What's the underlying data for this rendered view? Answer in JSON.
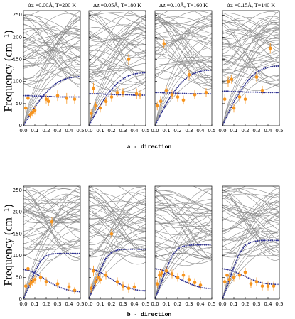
{
  "figure": {
    "y_label": "Frequency (cm⁻¹)",
    "row_labels": [
      "a - direction",
      "b - direction"
    ]
  },
  "chart_data": [
    {
      "type": "scatter",
      "title": "Δz =0.00Å,  T=200 K",
      "xlim": [
        0,
        0.5
      ],
      "ylim": [
        0,
        260
      ],
      "xticks": [
        {
          "value": 0,
          "label": "0.0"
        },
        0.1,
        0.2,
        0.3,
        0.4,
        0.5
      ],
      "yticks": [
        0,
        50,
        100,
        150,
        200,
        250
      ],
      "series": [
        {
          "color": "#2e3192",
          "x": [
            0,
            0.05,
            0.1,
            0.15,
            0.2,
            0.25,
            0.3,
            0.35,
            0.4,
            0.45,
            0.5
          ],
          "values": [
            0,
            22,
            42,
            60,
            75,
            88,
            98,
            104,
            108,
            110,
            111
          ]
        },
        {
          "color": "#2e3192",
          "x": [
            0,
            0.05,
            0.1,
            0.15,
            0.2,
            0.25,
            0.3,
            0.35,
            0.4,
            0.45,
            0.5
          ],
          "values": [
            68,
            68,
            67,
            67,
            66,
            66,
            65,
            65,
            65,
            65,
            65
          ]
        },
        {
          "color": "#f7941d",
          "x": [
            0.02,
            0.04,
            0.06,
            0.08,
            0.1,
            0.2,
            0.22,
            0.3,
            0.38,
            0.45
          ],
          "values": [
            40,
            62,
            25,
            30,
            35,
            60,
            55,
            68,
            62,
            60
          ],
          "errors": [
            10,
            12,
            8,
            8,
            10,
            10,
            10,
            12,
            12,
            10
          ]
        }
      ]
    },
    {
      "type": "scatter",
      "title": "Δz =0.05Å,  T=180 K",
      "xlim": [
        0,
        0.5
      ],
      "ylim": [
        0,
        260
      ],
      "xticks": [
        {
          "value": 0,
          "label": "0.0"
        },
        0.1,
        0.2,
        0.3,
        0.4,
        0.5
      ],
      "yticks": [
        0,
        50,
        100,
        150,
        200,
        250
      ],
      "series": [
        {
          "color": "#2e3192",
          "x": [
            0,
            0.05,
            0.1,
            0.15,
            0.2,
            0.25,
            0.3,
            0.35,
            0.4,
            0.45,
            0.5
          ],
          "values": [
            0,
            24,
            46,
            66,
            82,
            96,
            106,
            113,
            117,
            119,
            120
          ]
        },
        {
          "color": "#2e3192",
          "x": [
            0,
            0.05,
            0.1,
            0.15,
            0.2,
            0.25,
            0.3,
            0.35,
            0.4,
            0.45,
            0.5
          ],
          "values": [
            72,
            72,
            72,
            71,
            71,
            70,
            70,
            70,
            69,
            69,
            69
          ]
        },
        {
          "color": "#f7941d",
          "x": [
            0.02,
            0.04,
            0.06,
            0.1,
            0.15,
            0.2,
            0.25,
            0.3,
            0.35,
            0.42,
            0.45
          ],
          "values": [
            28,
            85,
            45,
            40,
            55,
            65,
            75,
            75,
            150,
            72,
            70
          ],
          "errors": [
            10,
            12,
            10,
            10,
            10,
            10,
            10,
            10,
            12,
            12,
            10
          ]
        }
      ]
    },
    {
      "type": "scatter",
      "title": "Δz =0.10Å,  T=160 K",
      "xlim": [
        0,
        0.5
      ],
      "ylim": [
        0,
        260
      ],
      "xticks": [
        {
          "value": 0,
          "label": "0.0"
        },
        0.1,
        0.2,
        0.3,
        0.4,
        0.5
      ],
      "yticks": [
        0,
        50,
        100,
        150,
        200,
        250
      ],
      "series": [
        {
          "color": "#2e3192",
          "x": [
            0,
            0.05,
            0.1,
            0.15,
            0.2,
            0.25,
            0.3,
            0.35,
            0.4,
            0.45,
            0.5
          ],
          "values": [
            0,
            26,
            50,
            71,
            88,
            102,
            112,
            119,
            123,
            125,
            126
          ]
        },
        {
          "color": "#2e3192",
          "x": [
            0,
            0.05,
            0.1,
            0.15,
            0.2,
            0.25,
            0.3,
            0.35,
            0.4,
            0.45,
            0.5
          ],
          "values": [
            75,
            75,
            74,
            74,
            73,
            73,
            72,
            72,
            72,
            72,
            72
          ]
        },
        {
          "color": "#f7941d",
          "x": [
            0.02,
            0.05,
            0.08,
            0.1,
            0.15,
            0.2,
            0.25,
            0.3,
            0.35,
            0.45
          ],
          "values": [
            45,
            55,
            185,
            80,
            70,
            65,
            58,
            115,
            70,
            75
          ],
          "errors": [
            10,
            12,
            10,
            10,
            10,
            10,
            10,
            12,
            10,
            10
          ]
        }
      ]
    },
    {
      "type": "scatter",
      "title": "Δz =0.15Å,  T=140 K",
      "xlim": [
        0,
        0.5
      ],
      "ylim": [
        0,
        260
      ],
      "xticks": [
        {
          "value": 0,
          "label": "0.0"
        },
        0.1,
        0.2,
        0.3,
        0.4,
        0.5
      ],
      "yticks": [
        0,
        50,
        100,
        150,
        200,
        250
      ],
      "series": [
        {
          "color": "#2e3192",
          "x": [
            0,
            0.05,
            0.1,
            0.15,
            0.2,
            0.25,
            0.3,
            0.35,
            0.4,
            0.45,
            0.5
          ],
          "values": [
            0,
            28,
            54,
            76,
            95,
            110,
            121,
            128,
            132,
            134,
            135
          ]
        },
        {
          "color": "#2e3192",
          "x": [
            0,
            0.05,
            0.1,
            0.15,
            0.2,
            0.25,
            0.3,
            0.35,
            0.4,
            0.45,
            0.5
          ],
          "values": [
            78,
            78,
            77,
            77,
            76,
            76,
            76,
            75,
            75,
            75,
            75
          ]
        },
        {
          "color": "#f7941d",
          "x": [
            0.02,
            0.05,
            0.08,
            0.1,
            0.15,
            0.2,
            0.3,
            0.35,
            0.42
          ],
          "values": [
            60,
            100,
            105,
            40,
            65,
            60,
            110,
            80,
            175
          ],
          "errors": [
            12,
            12,
            10,
            10,
            10,
            10,
            12,
            10,
            12
          ]
        }
      ]
    },
    {
      "type": "scatter",
      "xlim": [
        0,
        0.5
      ],
      "ylim": [
        0,
        260
      ],
      "xticks": [
        {
          "value": 0,
          "label": "0.0"
        },
        0.1,
        0.2,
        0.3,
        0.4,
        0.5
      ],
      "yticks": [
        0,
        50,
        100,
        150,
        200,
        250
      ],
      "series": [
        {
          "color": "#2e3192",
          "x": [
            0,
            0.05,
            0.1,
            0.15,
            0.2,
            0.25,
            0.3,
            0.35,
            0.4,
            0.45,
            0.5
          ],
          "values": [
            0,
            30,
            62,
            88,
            100,
            104,
            105,
            105,
            105,
            105,
            105
          ]
        },
        {
          "color": "#2e3192",
          "x": [
            0,
            0.05,
            0.1,
            0.15,
            0.2,
            0.25,
            0.3,
            0.35,
            0.4,
            0.45,
            0.5
          ],
          "values": [
            68,
            66,
            60,
            52,
            44,
            36,
            29,
            24,
            20,
            18,
            17
          ]
        },
        {
          "color": "#f7941d",
          "x": [
            0.02,
            0.04,
            0.06,
            0.08,
            0.1,
            0.15,
            0.2,
            0.25,
            0.3,
            0.4,
            0.45
          ],
          "values": [
            30,
            70,
            35,
            40,
            45,
            50,
            40,
            178,
            35,
            28,
            20
          ],
          "errors": [
            10,
            12,
            10,
            10,
            10,
            10,
            10,
            10,
            10,
            10,
            8
          ]
        }
      ]
    },
    {
      "type": "scatter",
      "xlim": [
        0,
        0.5
      ],
      "ylim": [
        0,
        260
      ],
      "xticks": [
        {
          "value": 0,
          "label": "0.0"
        },
        0.1,
        0.2,
        0.3,
        0.4,
        0.5
      ],
      "yticks": [
        0,
        50,
        100,
        150,
        200,
        250
      ],
      "series": [
        {
          "color": "#2e3192",
          "x": [
            0,
            0.05,
            0.1,
            0.15,
            0.2,
            0.25,
            0.3,
            0.35,
            0.4,
            0.45,
            0.5
          ],
          "values": [
            0,
            32,
            66,
            94,
            108,
            113,
            115,
            115,
            115,
            115,
            115
          ]
        },
        {
          "color": "#2e3192",
          "x": [
            0,
            0.05,
            0.1,
            0.15,
            0.2,
            0.25,
            0.3,
            0.35,
            0.4,
            0.45,
            0.5
          ],
          "values": [
            70,
            68,
            62,
            54,
            46,
            38,
            31,
            26,
            22,
            20,
            19
          ]
        },
        {
          "color": "#f7941d",
          "x": [
            0.02,
            0.04,
            0.06,
            0.08,
            0.1,
            0.15,
            0.2,
            0.25,
            0.3,
            0.35,
            0.4
          ],
          "values": [
            25,
            65,
            40,
            50,
            45,
            55,
            150,
            40,
            30,
            25,
            28
          ],
          "errors": [
            10,
            12,
            10,
            10,
            10,
            10,
            10,
            10,
            10,
            10,
            10
          ]
        }
      ]
    },
    {
      "type": "scatter",
      "xlim": [
        0,
        0.5
      ],
      "ylim": [
        0,
        260
      ],
      "xticks": [
        {
          "value": 0,
          "label": "0.0"
        },
        0.1,
        0.2,
        0.3,
        0.4,
        0.5
      ],
      "yticks": [
        0,
        50,
        100,
        150,
        200,
        250
      ],
      "series": [
        {
          "color": "#2e3192",
          "x": [
            0,
            0.05,
            0.1,
            0.15,
            0.2,
            0.25,
            0.3,
            0.35,
            0.4,
            0.45,
            0.5
          ],
          "values": [
            0,
            34,
            70,
            100,
            116,
            122,
            124,
            125,
            125,
            125,
            125
          ]
        },
        {
          "color": "#2e3192",
          "x": [
            0,
            0.05,
            0.1,
            0.15,
            0.2,
            0.25,
            0.3,
            0.35,
            0.4,
            0.45,
            0.5
          ],
          "values": [
            70,
            68,
            63,
            56,
            49,
            42,
            36,
            31,
            27,
            25,
            24
          ]
        },
        {
          "color": "#f7941d",
          "x": [
            0.02,
            0.04,
            0.06,
            0.1,
            0.15,
            0.2,
            0.25,
            0.3,
            0.35,
            0.4
          ],
          "values": [
            35,
            55,
            60,
            65,
            58,
            50,
            55,
            45,
            38,
            32
          ],
          "errors": [
            10,
            10,
            10,
            10,
            10,
            10,
            10,
            10,
            10,
            10
          ]
        }
      ]
    },
    {
      "type": "scatter",
      "xlim": [
        0,
        0.5
      ],
      "ylim": [
        0,
        260
      ],
      "xticks": [
        {
          "value": 0,
          "label": "0.0"
        },
        0.1,
        0.2,
        0.3,
        0.4,
        0.5
      ],
      "yticks": [
        0,
        50,
        100,
        150,
        200,
        250
      ],
      "series": [
        {
          "color": "#2e3192",
          "x": [
            0,
            0.05,
            0.1,
            0.15,
            0.2,
            0.25,
            0.3,
            0.35,
            0.4,
            0.45,
            0.5
          ],
          "values": [
            0,
            36,
            74,
            106,
            124,
            131,
            134,
            135,
            135,
            135,
            135
          ]
        },
        {
          "color": "#2e3192",
          "x": [
            0,
            0.05,
            0.1,
            0.15,
            0.2,
            0.25,
            0.3,
            0.35,
            0.4,
            0.45,
            0.5
          ],
          "values": [
            70,
            68,
            64,
            58,
            52,
            46,
            41,
            37,
            35,
            34,
            34
          ]
        },
        {
          "color": "#f7941d",
          "x": [
            0.02,
            0.04,
            0.06,
            0.1,
            0.15,
            0.2,
            0.25,
            0.3,
            0.35,
            0.4,
            0.45
          ],
          "values": [
            40,
            55,
            45,
            50,
            55,
            62,
            35,
            40,
            30,
            30,
            30
          ],
          "errors": [
            10,
            10,
            10,
            10,
            10,
            10,
            10,
            10,
            10,
            10,
            10
          ]
        }
      ]
    }
  ]
}
